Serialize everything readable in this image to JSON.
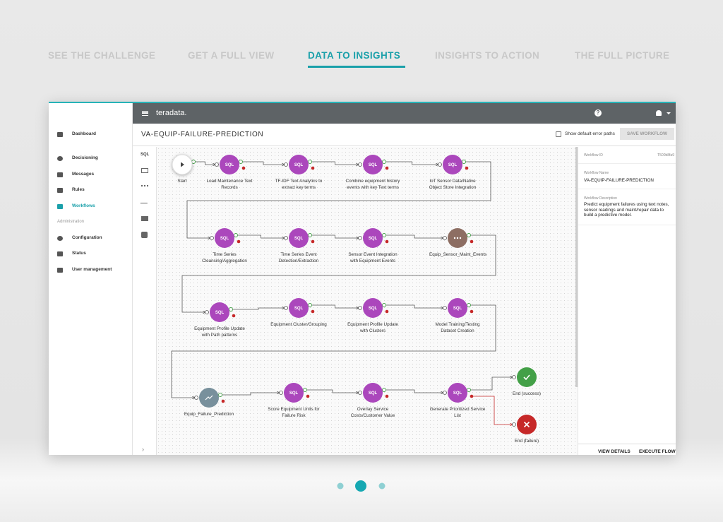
{
  "tabs": [
    "SEE THE CHALLENGE",
    "GET A FULL VIEW",
    "DATA TO INSIGHTS",
    "INSIGHTS TO ACTION",
    "THE FULL PICTURE"
  ],
  "app": {
    "brand": "teradata.",
    "nav": [
      "Dashboard",
      "Decisioning",
      "Messages",
      "Rules",
      "Workflows"
    ],
    "section": "Administration",
    "admin_nav": [
      "Configuration",
      "Status",
      "User management"
    ]
  },
  "workflow": {
    "title": "VA-EQUIP-FAILURE-PREDICTION",
    "error_paths_label": "Show default error paths",
    "save_button": "SAVE WORKFLOW",
    "palette_label": "SQL",
    "nodes": [
      {
        "label": "Start"
      },
      {
        "label": "Load Maintenance Text Records",
        "icon": "SQL"
      },
      {
        "label": "TF-IDF Text Analytics to extract key terms",
        "icon": "SQL"
      },
      {
        "label": "Combine equipment history events with key Text terms",
        "icon": "SQL"
      },
      {
        "label": "IoT Sensor Data/Native Object Store Integration",
        "icon": "SQL"
      },
      {
        "label": "Time Series Cleansing/Aggregation",
        "icon": "SQL"
      },
      {
        "label": "Time Series Event Detection/Extraction",
        "icon": "SQL"
      },
      {
        "label": "Sensor Event Integration with Equipment Events",
        "icon": "SQL"
      },
      {
        "label": "Equip_Sensor_Maint_Events"
      },
      {
        "label": "Equipment Profile Update with Path patterns",
        "icon": "SQL"
      },
      {
        "label": "Equipment Cluster/Grouping",
        "icon": "SQL"
      },
      {
        "label": "Equipment Profile Update with Clusters",
        "icon": "SQL"
      },
      {
        "label": "Model Training/Testing Dataset Creation",
        "icon": "SQL"
      },
      {
        "label": "Equip_Failure_Prediction"
      },
      {
        "label": "Score Equipment Units for Failure Risk",
        "icon": "SQL"
      },
      {
        "label": "Overlay Service Costs/Customer Value",
        "icon": "SQL"
      },
      {
        "label": "Generate Prioritized Service List",
        "icon": "SQL"
      },
      {
        "label": "End (success)"
      },
      {
        "label": "End (failure)"
      }
    ]
  },
  "details": {
    "id_label": "Workflow ID",
    "id": "T500b8fa9",
    "name_label": "Workflow Name",
    "name": "VA-EQUIP-FAILURE-PREDICTION",
    "description_label": "Workflow Description",
    "description": "Predict equipment failures using text notes, sensor readings and maint/repair data to build a predictive model.",
    "view_button": "VIEW DETAILS",
    "execute_button": "EXECUTE FLOW"
  }
}
